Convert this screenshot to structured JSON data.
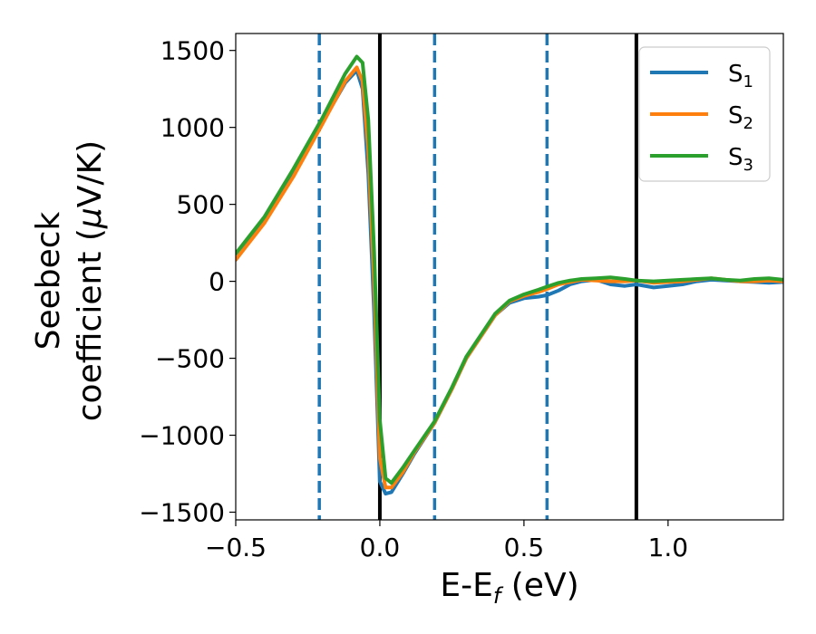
{
  "chart_data": {
    "type": "line",
    "xlabel": {
      "main": "E-E",
      "sub": "f",
      "unit": " (eV)"
    },
    "ylabel": {
      "line1": "Seebeck",
      "line2_pre": "coefficient  (",
      "mu": "μ",
      "line2_post": "V/K)"
    },
    "xlim": [
      -0.5,
      1.4
    ],
    "ylim": [
      -1550,
      1610
    ],
    "x_ticks": [
      -0.5,
      0.0,
      0.5,
      1.0
    ],
    "x_tick_labels": [
      "−0.5",
      "0.0",
      "0.5",
      "1.0"
    ],
    "y_ticks": [
      -1500,
      -1000,
      -500,
      0,
      500,
      1000,
      1500
    ],
    "y_tick_labels": [
      "−1500",
      "−1000",
      "−500",
      "0",
      "500",
      "1000",
      "1500"
    ],
    "vlines": [
      {
        "x": -0.21,
        "style": "dashed",
        "color": "#1f77b4"
      },
      {
        "x": 0.0,
        "style": "solid",
        "color": "#000000"
      },
      {
        "x": 0.19,
        "style": "dashed",
        "color": "#1f77b4"
      },
      {
        "x": 0.58,
        "style": "dashed",
        "color": "#1f77b4"
      },
      {
        "x": 0.89,
        "style": "solid",
        "color": "#000000"
      }
    ],
    "legend_position": "top-right",
    "series": [
      {
        "name": "S",
        "sub": "1",
        "color": "#1f77b4",
        "x": [
          -0.5,
          -0.4,
          -0.3,
          -0.2,
          -0.12,
          -0.08,
          -0.06,
          -0.04,
          -0.02,
          0.0,
          0.02,
          0.04,
          0.08,
          0.12,
          0.19,
          0.25,
          0.3,
          0.4,
          0.45,
          0.5,
          0.55,
          0.58,
          0.62,
          0.66,
          0.7,
          0.75,
          0.8,
          0.85,
          0.89,
          0.95,
          1.0,
          1.05,
          1.1,
          1.15,
          1.2,
          1.25,
          1.3,
          1.35,
          1.4
        ],
        "y": [
          140,
          390,
          690,
          1030,
          1290,
          1370,
          1250,
          700,
          -200,
          -1300,
          -1380,
          -1370,
          -1250,
          -1120,
          -920,
          -700,
          -500,
          -220,
          -140,
          -110,
          -100,
          -90,
          -60,
          -20,
          0,
          10,
          -20,
          -30,
          -20,
          -40,
          -30,
          -20,
          0,
          10,
          5,
          0,
          -5,
          -10,
          -5
        ]
      },
      {
        "name": "S",
        "sub": "2",
        "color": "#ff7f0e",
        "x": [
          -0.5,
          -0.4,
          -0.3,
          -0.2,
          -0.12,
          -0.08,
          -0.06,
          -0.04,
          -0.02,
          0.0,
          0.02,
          0.04,
          0.08,
          0.12,
          0.19,
          0.25,
          0.3,
          0.4,
          0.45,
          0.5,
          0.55,
          0.58,
          0.62,
          0.66,
          0.7,
          0.75,
          0.8,
          0.85,
          0.89,
          0.95,
          1.0,
          1.05,
          1.1,
          1.15,
          1.2,
          1.25,
          1.3,
          1.35,
          1.4
        ],
        "y": [
          140,
          380,
          680,
          1020,
          1300,
          1390,
          1300,
          850,
          0,
          -1150,
          -1340,
          -1340,
          -1240,
          -1110,
          -920,
          -700,
          -500,
          -220,
          -130,
          -95,
          -70,
          -50,
          -20,
          -5,
          10,
          5,
          0,
          0,
          5,
          -10,
          -5,
          0,
          10,
          20,
          10,
          0,
          0,
          5,
          0
        ]
      },
      {
        "name": "S",
        "sub": "3",
        "color": "#2ca02c",
        "x": [
          -0.5,
          -0.4,
          -0.3,
          -0.2,
          -0.12,
          -0.08,
          -0.06,
          -0.04,
          -0.02,
          0.0,
          0.02,
          0.04,
          0.08,
          0.12,
          0.19,
          0.25,
          0.3,
          0.4,
          0.45,
          0.5,
          0.55,
          0.58,
          0.62,
          0.66,
          0.7,
          0.75,
          0.8,
          0.85,
          0.89,
          0.95,
          1.0,
          1.05,
          1.1,
          1.15,
          1.2,
          1.25,
          1.3,
          1.35,
          1.4
        ],
        "y": [
          180,
          420,
          730,
          1060,
          1350,
          1460,
          1420,
          1050,
          200,
          -900,
          -1280,
          -1310,
          -1210,
          -1100,
          -910,
          -690,
          -490,
          -210,
          -125,
          -85,
          -55,
          -35,
          -10,
          5,
          15,
          20,
          25,
          15,
          5,
          0,
          5,
          10,
          15,
          20,
          10,
          5,
          15,
          20,
          10
        ]
      }
    ]
  }
}
